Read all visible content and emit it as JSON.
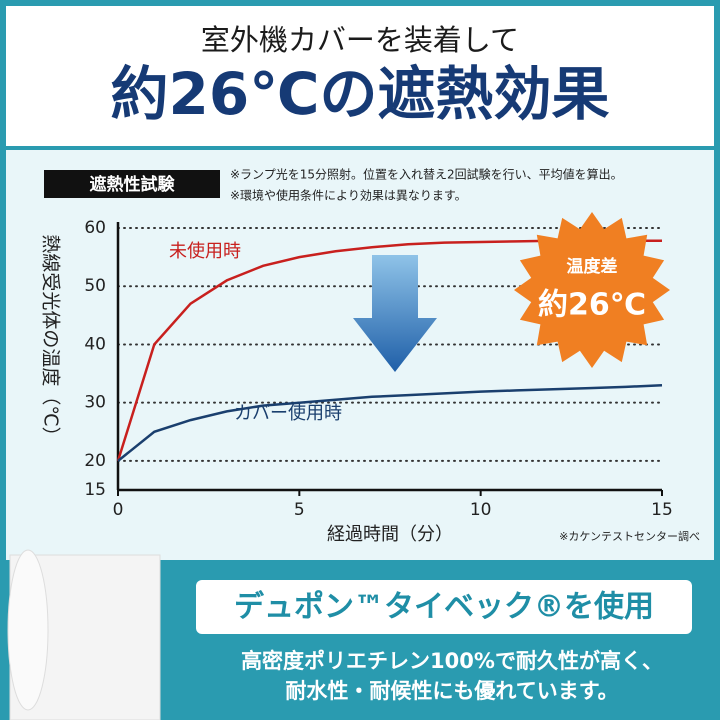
{
  "header": {
    "subtitle": "室外機カバーを装着して",
    "title": "約26℃の遮熱効果"
  },
  "chart_data": {
    "type": "line",
    "badge": "遮熱性試験",
    "notes": [
      "※ランプ光を15分照射。位置を入れ替え2回試験を行い、平均値を算出。",
      "※環境や使用条件により効果は異なります。"
    ],
    "x_label": "経過時間（分）",
    "y_label": "熱線受光体の温度（℃）",
    "source": "※カケンテストセンター調べ",
    "x": [
      0,
      1,
      2,
      3,
      4,
      5,
      6,
      7,
      8,
      9,
      10,
      11,
      12,
      13,
      14,
      15
    ],
    "series": [
      {
        "name": "未使用時",
        "color": "#c8201e",
        "values": [
          20,
          40,
          47,
          51,
          53.5,
          55,
          56,
          56.7,
          57.2,
          57.5,
          57.6,
          57.7,
          57.8,
          57.8,
          57.8,
          57.8
        ]
      },
      {
        "name": "カバー使用時",
        "color": "#1a3f6e",
        "values": [
          20,
          25,
          27,
          28.5,
          29.5,
          30,
          30.5,
          31,
          31.3,
          31.6,
          31.9,
          32.1,
          32.3,
          32.5,
          32.7,
          33
        ]
      }
    ],
    "xlim": [
      0,
      15
    ],
    "xticks": [
      0,
      5,
      10,
      15
    ],
    "ylim": [
      15,
      60
    ],
    "yticks": [
      15,
      20,
      30,
      40,
      50,
      60
    ],
    "grid": true,
    "burst": {
      "label": "温度差",
      "value": "約26℃"
    }
  },
  "footer": {
    "title": "デュポン™タイベック®を使用",
    "lines": [
      "高密度ポリエチレン100%で耐久性が高く、",
      "耐水性・耐候性にも優れています。"
    ]
  }
}
